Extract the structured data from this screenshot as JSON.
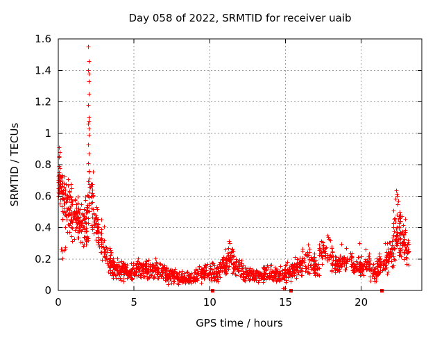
{
  "chart_data": {
    "type": "scatter",
    "title": "Day 058 of 2022, SRMTID for receiver uaib",
    "xlabel": "GPS time / hours",
    "ylabel": "SRMTID / TECUs",
    "xlim": [
      0,
      24
    ],
    "ylim": [
      0,
      1.6
    ],
    "xticks": [
      0,
      5,
      10,
      15,
      20
    ],
    "xtick_labels": [
      "0",
      "5",
      "10",
      "15",
      "20"
    ],
    "yticks": [
      0,
      0.2,
      0.4,
      0.6,
      0.8,
      1,
      1.2,
      1.4,
      1.6
    ],
    "ytick_labels": [
      "0",
      "0.2",
      "0.4",
      "0.6",
      "0.8",
      "1",
      "1.2",
      "1.4",
      "1.6"
    ],
    "grid": true,
    "legend": "none",
    "colors": {
      "marker": "#ff0000",
      "grid": "#9b9b9b",
      "border": "#000000",
      "background": "#ffffff"
    },
    "marker": {
      "glyph": "plus-cross",
      "size": 7,
      "zero_marker_glyph": "filled-square",
      "zero_marker_size": 5
    },
    "prng_seed": 20220058,
    "scatter_profile_format": [
      "x_start_hours",
      "x_end_hours",
      "point_count",
      "y_min_TECUs",
      "y_max_TECUs"
    ],
    "scatter_profile": [
      [
        0.0,
        0.1,
        20,
        0.5,
        0.88
      ],
      [
        0.05,
        0.5,
        46,
        0.4,
        0.85
      ],
      [
        0.15,
        0.5,
        8,
        0.18,
        0.33
      ],
      [
        0.4,
        0.9,
        48,
        0.33,
        0.72
      ],
      [
        0.8,
        1.3,
        45,
        0.3,
        0.65
      ],
      [
        1.2,
        1.7,
        40,
        0.28,
        0.56
      ],
      [
        1.6,
        1.95,
        30,
        0.25,
        0.52
      ],
      [
        1.75,
        1.95,
        10,
        0.44,
        0.66
      ],
      [
        1.95,
        2.3,
        26,
        0.4,
        0.8
      ],
      [
        2.2,
        2.65,
        32,
        0.28,
        0.58
      ],
      [
        2.55,
        3.05,
        30,
        0.18,
        0.46
      ],
      [
        3.0,
        3.5,
        36,
        0.1,
        0.32
      ],
      [
        3.4,
        3.9,
        40,
        0.06,
        0.24
      ],
      [
        3.8,
        4.5,
        55,
        0.05,
        0.2
      ],
      [
        4.4,
        5.2,
        56,
        0.06,
        0.2
      ],
      [
        5.1,
        5.85,
        52,
        0.07,
        0.22
      ],
      [
        5.75,
        6.6,
        60,
        0.06,
        0.22
      ],
      [
        6.5,
        7.2,
        50,
        0.05,
        0.18
      ],
      [
        7.1,
        8.0,
        62,
        0.03,
        0.14
      ],
      [
        7.9,
        9.0,
        75,
        0.03,
        0.13
      ],
      [
        8.9,
        9.65,
        48,
        0.04,
        0.16
      ],
      [
        9.55,
        10.05,
        30,
        0.06,
        0.19
      ],
      [
        10.0,
        10.7,
        45,
        0.05,
        0.18
      ],
      [
        10.6,
        11.1,
        36,
        0.08,
        0.22
      ],
      [
        11.0,
        11.6,
        40,
        0.12,
        0.29
      ],
      [
        11.5,
        12.2,
        46,
        0.08,
        0.22
      ],
      [
        12.1,
        12.9,
        50,
        0.05,
        0.16
      ],
      [
        12.8,
        13.6,
        52,
        0.04,
        0.13
      ],
      [
        13.5,
        14.3,
        52,
        0.05,
        0.17
      ],
      [
        14.2,
        15.0,
        50,
        0.04,
        0.16
      ],
      [
        14.95,
        15.6,
        38,
        0.05,
        0.2
      ],
      [
        15.5,
        16.1,
        40,
        0.07,
        0.22
      ],
      [
        16.1,
        16.9,
        44,
        0.1,
        0.28
      ],
      [
        16.85,
        17.25,
        24,
        0.08,
        0.2
      ],
      [
        17.2,
        18.1,
        46,
        0.12,
        0.34
      ],
      [
        18.0,
        18.6,
        36,
        0.08,
        0.24
      ],
      [
        18.5,
        19.4,
        46,
        0.1,
        0.26
      ],
      [
        19.3,
        20.0,
        40,
        0.08,
        0.24
      ],
      [
        19.9,
        20.6,
        40,
        0.08,
        0.25
      ],
      [
        20.5,
        21.1,
        36,
        0.05,
        0.18
      ],
      [
        21.0,
        21.7,
        40,
        0.08,
        0.26
      ],
      [
        21.6,
        22.2,
        42,
        0.1,
        0.34
      ],
      [
        22.1,
        22.6,
        48,
        0.18,
        0.56
      ],
      [
        22.45,
        22.95,
        46,
        0.15,
        0.5
      ],
      [
        22.85,
        23.15,
        22,
        0.15,
        0.35
      ]
    ],
    "explicit_points": [
      [
        0.04,
        0.85
      ],
      [
        0.06,
        0.91
      ],
      [
        0.1,
        0.88
      ],
      [
        1.97,
        1.55
      ],
      [
        2.0,
        1.46
      ],
      [
        1.99,
        1.4
      ],
      [
        2.02,
        1.38
      ],
      [
        2.0,
        1.33
      ],
      [
        2.01,
        1.25
      ],
      [
        1.98,
        1.18
      ],
      [
        2.0,
        1.1
      ],
      [
        2.03,
        1.08
      ],
      [
        1.97,
        1.06
      ],
      [
        2.0,
        1.03
      ],
      [
        2.02,
        0.99
      ],
      [
        1.99,
        0.93
      ],
      [
        2.01,
        0.87
      ],
      [
        1.98,
        0.81
      ],
      [
        2.0,
        0.76
      ],
      [
        2.04,
        0.71
      ],
      [
        11.2,
        0.27
      ],
      [
        11.25,
        0.315
      ],
      [
        11.3,
        0.3
      ],
      [
        14.85,
        0.015
      ],
      [
        14.95,
        0.015
      ],
      [
        16.5,
        0.29
      ],
      [
        17.75,
        0.35
      ],
      [
        17.8,
        0.34
      ],
      [
        17.85,
        0.325
      ],
      [
        18.7,
        0.295
      ],
      [
        19.0,
        0.27
      ],
      [
        19.9,
        0.3
      ],
      [
        20.3,
        0.26
      ],
      [
        21.55,
        0.3
      ],
      [
        22.3,
        0.635
      ],
      [
        22.35,
        0.615
      ],
      [
        22.4,
        0.6
      ],
      [
        22.28,
        0.585
      ],
      [
        22.45,
        0.57
      ]
    ],
    "zero_value_squares_x_hours": [
      10.17,
      15.35,
      21.35
    ]
  }
}
